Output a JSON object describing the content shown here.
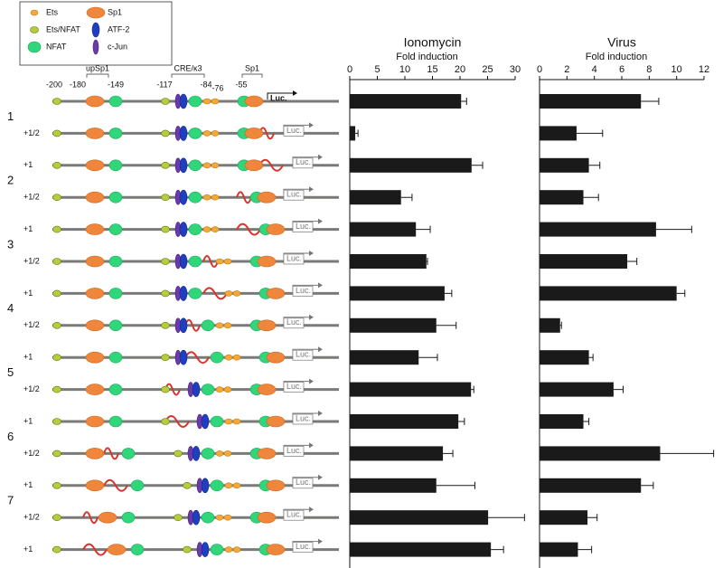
{
  "chart_data": [
    {
      "type": "bar",
      "orientation": "horizontal",
      "title": "Ionomycin",
      "xlabel": "Fold induction",
      "color": "#1a1a1a",
      "xlim": [
        0,
        30
      ],
      "xticks": [
        0,
        5,
        10,
        15,
        20,
        25,
        30
      ],
      "values": [
        20.2,
        1.0,
        22.1,
        9.3,
        12.0,
        13.9,
        17.2,
        15.7,
        12.5,
        22.0,
        19.7,
        16.9,
        15.7,
        25.1,
        25.6
      ],
      "errors": [
        1.0,
        0.5,
        2.0,
        2.0,
        2.6,
        0.2,
        1.3,
        3.6,
        3.4,
        0.5,
        1.1,
        1.8,
        7.0,
        6.6,
        2.3
      ]
    },
    {
      "type": "bar",
      "orientation": "horizontal",
      "title": "Virus",
      "xlabel": "Fold induction",
      "color": "#1a1a1a",
      "xlim": [
        0,
        12
      ],
      "xticks": [
        0,
        2,
        4,
        6,
        8,
        10,
        12
      ],
      "values": [
        7.4,
        2.7,
        3.6,
        3.2,
        8.5,
        6.4,
        10.0,
        1.5,
        3.6,
        5.4,
        3.2,
        8.8,
        7.4,
        3.5,
        2.8
      ],
      "errors": [
        1.3,
        1.9,
        0.8,
        1.1,
        2.6,
        0.7,
        0.6,
        0.1,
        0.3,
        0.7,
        0.4,
        3.9,
        0.9,
        0.7,
        1.0
      ]
    }
  ],
  "diagram": {
    "legend": [
      "Ets",
      "Sp1",
      "Ets/NFAT",
      "ATF-2",
      "NFAT",
      "c-Jun"
    ],
    "positions": [
      "-200",
      "-180",
      "-149",
      "-117",
      "-84",
      "-76",
      "-55"
    ],
    "regions": [
      "upSp1",
      "CRE/κ3",
      "Sp1"
    ],
    "luc": "Luc.",
    "groups": [
      "1",
      "2",
      "3",
      "4",
      "5",
      "6",
      "7"
    ],
    "rows": [
      null,
      "+1/2",
      "+1",
      "+1/2",
      "+1",
      "+1/2",
      "+1",
      "+1/2",
      "+1",
      "+1/2",
      "+1",
      "+1/2",
      "+1",
      "+1/2",
      "+1"
    ]
  }
}
